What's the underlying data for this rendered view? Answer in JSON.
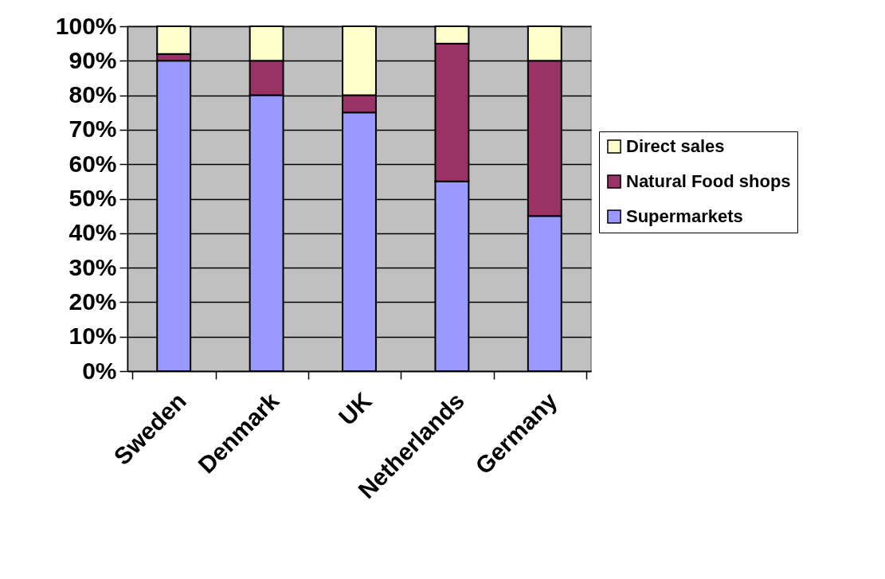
{
  "chart_data": {
    "type": "bar",
    "stacked": true,
    "categories": [
      "Sweden",
      "Denmark",
      "UK",
      "Netherlands",
      "Germany"
    ],
    "series": [
      {
        "name": "Supermarkets",
        "color": "#9999ff",
        "values": [
          90,
          80,
          75,
          55,
          45
        ]
      },
      {
        "name": "Natural Food shops",
        "color": "#993366",
        "values": [
          2,
          10,
          5,
          40,
          45
        ]
      },
      {
        "name": "Direct sales",
        "color": "#ffffcc",
        "values": [
          8,
          10,
          20,
          5,
          10
        ]
      }
    ],
    "ylim": [
      0,
      100
    ],
    "yticks": [
      {
        "value": 0,
        "label": "0%"
      },
      {
        "value": 10,
        "label": "10%"
      },
      {
        "value": 20,
        "label": "20%"
      },
      {
        "value": 30,
        "label": "30%"
      },
      {
        "value": 40,
        "label": "40%"
      },
      {
        "value": 50,
        "label": "50%"
      },
      {
        "value": 60,
        "label": "60%"
      },
      {
        "value": 70,
        "label": "70%"
      },
      {
        "value": 80,
        "label": "80%"
      },
      {
        "value": 90,
        "label": "90%"
      },
      {
        "value": 100,
        "label": "100%"
      }
    ],
    "grid": "y",
    "legend": "right"
  }
}
